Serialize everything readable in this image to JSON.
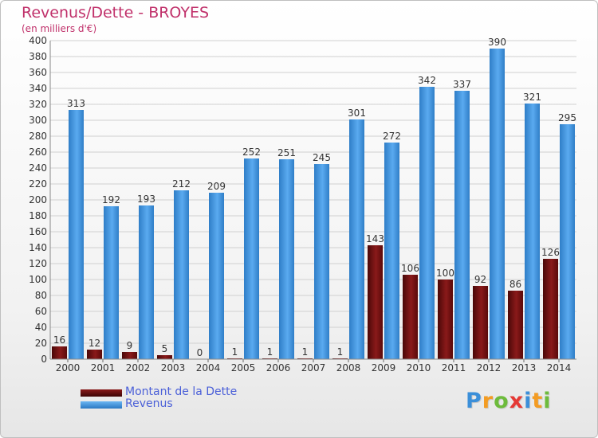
{
  "chart_data": {
    "type": "bar",
    "title": "Revenus/Dette - BROYES",
    "subtitle": "(en milliers d'€)",
    "categories": [
      "2000",
      "2001",
      "2002",
      "2003",
      "2004",
      "2005",
      "2006",
      "2007",
      "2008",
      "2009",
      "2010",
      "2011",
      "2012",
      "2013",
      "2014"
    ],
    "series": [
      {
        "name": "Montant de la Dette",
        "color": "#6b0d0d",
        "values": [
          16,
          12,
          9,
          5,
          0,
          1,
          1,
          1,
          1,
          143,
          106,
          100,
          92,
          86,
          126
        ]
      },
      {
        "name": "Revenus",
        "color": "#3d8fd8",
        "values": [
          313,
          192,
          193,
          212,
          209,
          252,
          251,
          245,
          301,
          272,
          342,
          337,
          390,
          321,
          295
        ]
      }
    ],
    "ylim": [
      0,
      400
    ],
    "ytick_step": 20,
    "grid": true,
    "legend": "bottom-left"
  },
  "logo": {
    "letters": [
      "P",
      "r",
      "o",
      "x",
      "i",
      "t",
      "i"
    ],
    "colors": [
      "#3b8fd9",
      "#f39c23",
      "#6dbb3c",
      "#e53935",
      "#3b8fd9",
      "#f39c23",
      "#6dbb3c"
    ]
  }
}
